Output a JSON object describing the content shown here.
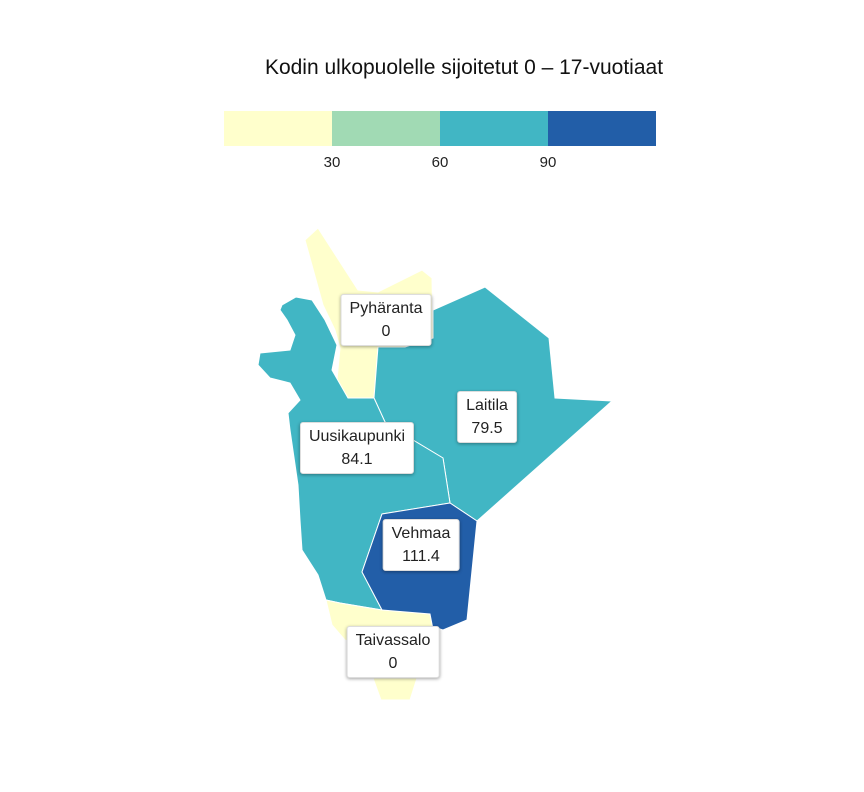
{
  "title": "Kodin ulkopuolelle sijoitetut 0 – 17-vuotiaat",
  "legend": {
    "colors": [
      "#ffffcc",
      "#a1dab4",
      "#41b6c4",
      "#225ea8"
    ],
    "breaks": [
      "30",
      "60",
      "90"
    ]
  },
  "regions": [
    {
      "name": "Pyhäranta",
      "value": "0",
      "color": "#ffffcc"
    },
    {
      "name": "Laitila",
      "value": "79.5",
      "color": "#41b6c4"
    },
    {
      "name": "Uusikaupunki",
      "value": "84.1",
      "color": "#41b6c4"
    },
    {
      "name": "Vehmaa",
      "value": "111.4",
      "color": "#225ea8"
    },
    {
      "name": "Taivassalo",
      "value": "0",
      "color": "#ffffcc"
    }
  ]
}
